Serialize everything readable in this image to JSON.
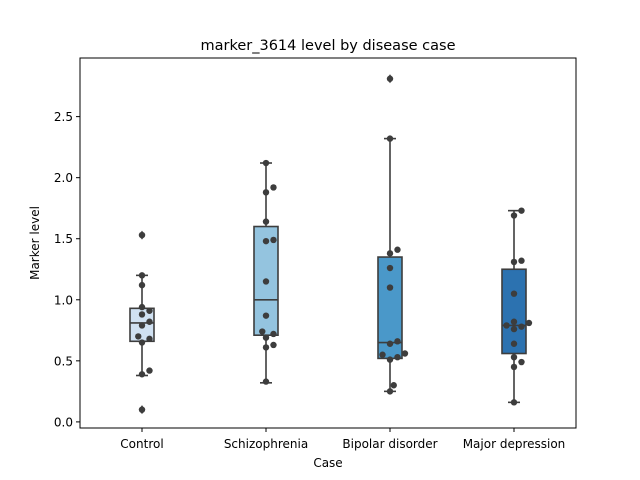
{
  "chart_data": {
    "type": "box",
    "title": "marker_3614 level by disease case",
    "xlabel": "Case",
    "ylabel": "Marker level",
    "ylim": [
      -0.05,
      2.98
    ],
    "yticks": [
      0.0,
      0.5,
      1.0,
      1.5,
      2.0,
      2.5
    ],
    "ytick_labels": [
      "0.0",
      "0.5",
      "1.0",
      "1.5",
      "2.0",
      "2.5"
    ],
    "grid": false,
    "categories": [
      "Control",
      "Schizophrenia",
      "Bipolar disorder",
      "Major depression"
    ],
    "colors": [
      "#d0e1f2",
      "#94c4df",
      "#4a98c9",
      "#2c72b0"
    ],
    "boxes": [
      {
        "q1": 0.66,
        "median": 0.81,
        "q3": 0.93,
        "whisker_low": 0.38,
        "whisker_high": 1.2,
        "outliers": [
          1.53,
          0.1
        ]
      },
      {
        "q1": 0.71,
        "median": 1.0,
        "q3": 1.6,
        "whisker_low": 0.32,
        "whisker_high": 2.12,
        "outliers": []
      },
      {
        "q1": 0.52,
        "median": 0.65,
        "q3": 1.35,
        "whisker_low": 0.25,
        "whisker_high": 2.32,
        "outliers": [
          2.81
        ]
      },
      {
        "q1": 0.56,
        "median": 0.79,
        "q3": 1.25,
        "whisker_low": 0.16,
        "whisker_high": 1.73,
        "outliers": []
      }
    ],
    "points": [
      [
        1.53,
        0.1,
        1.2,
        1.12,
        0.94,
        0.91,
        0.88,
        0.82,
        0.79,
        0.7,
        0.68,
        0.65,
        0.42,
        0.39
      ],
      [
        2.12,
        1.92,
        1.88,
        1.64,
        1.49,
        1.48,
        1.15,
        0.87,
        0.74,
        0.72,
        0.69,
        0.63,
        0.61,
        0.33
      ],
      [
        2.81,
        2.32,
        1.41,
        1.38,
        1.26,
        1.1,
        0.66,
        0.64,
        0.56,
        0.55,
        0.53,
        0.51,
        0.3,
        0.25
      ],
      [
        1.73,
        1.69,
        1.32,
        1.31,
        1.05,
        0.82,
        0.81,
        0.79,
        0.78,
        0.76,
        0.64,
        0.53,
        0.49,
        0.45,
        0.16
      ]
    ]
  }
}
